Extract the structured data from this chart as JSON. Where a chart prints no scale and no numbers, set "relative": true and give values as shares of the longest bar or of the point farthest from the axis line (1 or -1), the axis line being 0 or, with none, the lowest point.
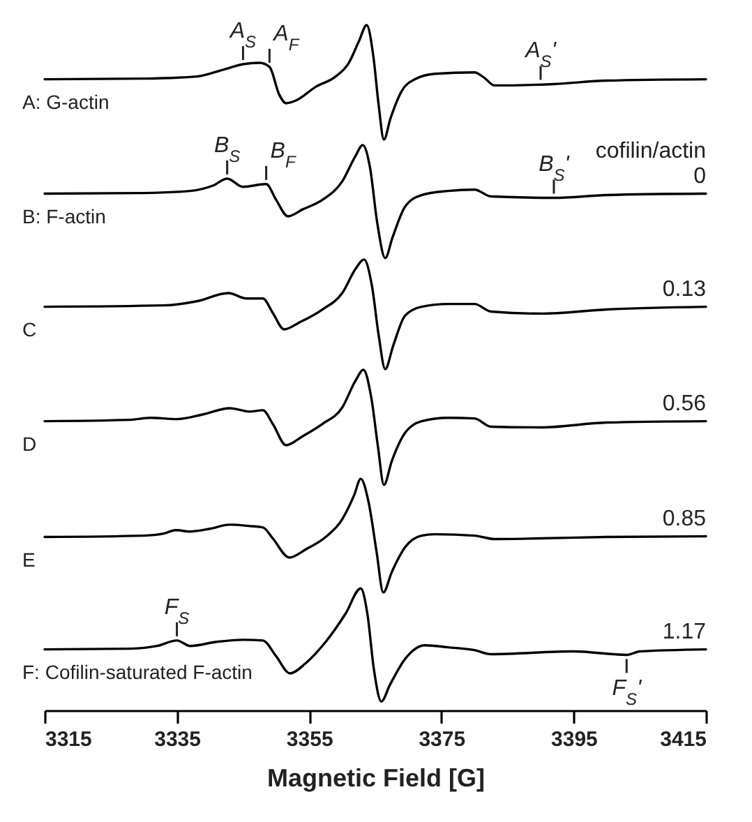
{
  "chart_data": {
    "type": "line",
    "relative": true,
    "xlabel": "Magnetic Field [G]",
    "xlim": [
      3315,
      3415
    ],
    "xticks": [
      3315,
      3335,
      3355,
      3375,
      3395,
      3415
    ],
    "grid": false,
    "legend": false,
    "legend_title": "cofilin/actin",
    "line_style": "solid",
    "marker": "none",
    "series": [
      {
        "name": "A: G-actin",
        "color": "#000000",
        "x": [
          3315,
          3330,
          3338,
          3342,
          3345,
          3347.5,
          3349,
          3350.5,
          3351.5,
          3353,
          3356,
          3359,
          3361,
          3362.5,
          3363.7,
          3364.7,
          3365.5,
          3366.3,
          3367.3,
          3369,
          3371,
          3374,
          3380,
          3381.5,
          3383,
          3392,
          3400,
          3415
        ],
        "values": [
          0.921,
          0.922,
          0.925,
          0.935,
          0.943,
          0.945,
          0.939,
          0.898,
          0.886,
          0.89,
          0.91,
          0.925,
          0.945,
          0.976,
          1.0,
          0.955,
          0.884,
          0.833,
          0.864,
          0.904,
          0.921,
          0.929,
          0.931,
          0.923,
          0.912,
          0.914,
          0.919,
          0.921
        ]
      },
      {
        "name": "B: F-actin",
        "color": "#000000",
        "x": [
          3315,
          3330,
          3337,
          3340.5,
          3342.6,
          3345,
          3348.5,
          3350,
          3351.8,
          3354,
          3357,
          3360,
          3362,
          3363.1,
          3364.2,
          3365.3,
          3366.5,
          3367.6,
          3369.5,
          3372,
          3376,
          3380,
          3382.5,
          3392,
          3400,
          3415
        ],
        "values": [
          0.754,
          0.755,
          0.758,
          0.766,
          0.776,
          0.764,
          0.768,
          0.745,
          0.721,
          0.731,
          0.745,
          0.772,
          0.809,
          0.825,
          0.792,
          0.711,
          0.66,
          0.69,
          0.735,
          0.752,
          0.758,
          0.76,
          0.75,
          0.748,
          0.752,
          0.754
        ]
      },
      {
        "name": "C",
        "color": "#000000",
        "x": [
          3315,
          3333,
          3338,
          3342.8,
          3345.5,
          3348,
          3349.5,
          3351.2,
          3353.5,
          3357,
          3360,
          3362,
          3363.3,
          3364.5,
          3365.5,
          3366.5,
          3367.7,
          3369.5,
          3372,
          3376,
          3380,
          3382.5,
          3390,
          3400,
          3415
        ],
        "values": [
          0.589,
          0.591,
          0.597,
          0.609,
          0.601,
          0.601,
          0.58,
          0.556,
          0.566,
          0.585,
          0.609,
          0.644,
          0.658,
          0.619,
          0.548,
          0.498,
          0.532,
          0.576,
          0.589,
          0.593,
          0.593,
          0.582,
          0.579,
          0.585,
          0.589
        ]
      },
      {
        "name": "D",
        "color": "#000000",
        "x": [
          3315,
          3328,
          3331,
          3335,
          3339,
          3343,
          3346,
          3348,
          3349.5,
          3351.5,
          3354,
          3357,
          3360,
          3362,
          3363.2,
          3364.4,
          3365.4,
          3366.3,
          3367.5,
          3369.5,
          3372,
          3376,
          3380,
          3382.5,
          3390,
          3400,
          3415
        ],
        "values": [
          0.422,
          0.424,
          0.427,
          0.425,
          0.432,
          0.441,
          0.436,
          0.438,
          0.418,
          0.387,
          0.4,
          0.418,
          0.442,
          0.481,
          0.497,
          0.456,
          0.385,
          0.329,
          0.364,
          0.405,
          0.422,
          0.427,
          0.426,
          0.414,
          0.413,
          0.42,
          0.422
        ]
      },
      {
        "name": "E",
        "color": "#000000",
        "x": [
          3315,
          3330,
          3333,
          3334.8,
          3337,
          3340,
          3343,
          3346,
          3348,
          3349.5,
          3352,
          3354.5,
          3357.5,
          3360,
          3361.8,
          3362.8,
          3364,
          3365.2,
          3366.2,
          3367.5,
          3369.5,
          3372,
          3374,
          3380,
          3383,
          3390,
          3400,
          3415
        ],
        "values": [
          0.253,
          0.255,
          0.258,
          0.263,
          0.261,
          0.265,
          0.271,
          0.269,
          0.267,
          0.251,
          0.223,
          0.235,
          0.253,
          0.279,
          0.314,
          0.338,
          0.303,
          0.231,
          0.172,
          0.202,
          0.238,
          0.255,
          0.257,
          0.255,
          0.25,
          0.251,
          0.253,
          0.254
        ]
      },
      {
        "name": "F: Cofilin-saturated F-actin",
        "color": "#000000",
        "x": [
          3315,
          3328,
          3332,
          3335,
          3337,
          3341,
          3345,
          3348,
          3350,
          3352.1,
          3354.5,
          3357.5,
          3360.5,
          3362.8,
          3363.8,
          3364.8,
          3365.9,
          3367.2,
          3369.5,
          3372.5,
          3376,
          3380,
          3382.5,
          3395,
          3403,
          3405,
          3415
        ],
        "values": [
          0.089,
          0.09,
          0.094,
          0.102,
          0.094,
          0.1,
          0.103,
          0.102,
          0.079,
          0.054,
          0.069,
          0.1,
          0.141,
          0.178,
          0.141,
          0.059,
          0.013,
          0.037,
          0.075,
          0.095,
          0.092,
          0.088,
          0.082,
          0.086,
          0.081,
          0.086,
          0.089
        ]
      }
    ],
    "annotations": [
      {
        "text": "A$_{S}$",
        "x": 3345,
        "y": 0.943
      },
      {
        "text": "A$_{F}$",
        "x": 3349,
        "y": 0.939
      },
      {
        "text": "A$_{S}$'",
        "x": 3390,
        "y": 0.914
      },
      {
        "text": "B$_{S}$",
        "x": 3342.6,
        "y": 0.776
      },
      {
        "text": "B$_{F}$",
        "x": 3348.5,
        "y": 0.768
      },
      {
        "text": "B$_{S}$'",
        "x": 3392,
        "y": 0.748
      },
      {
        "text": "F$_{S}$",
        "x": 3335,
        "y": 0.102
      },
      {
        "text": "F$_{S}$'",
        "x": 3403,
        "y": 0.081
      },
      {
        "text": "0",
        "x": 3415,
        "y": 0.754
      },
      {
        "text": "0.13",
        "x": 3415,
        "y": 0.589
      },
      {
        "text": "0.56",
        "x": 3415,
        "y": 0.422
      },
      {
        "text": "0.85",
        "x": 3415,
        "y": 0.254
      },
      {
        "text": "1.17",
        "x": 3415,
        "y": 0.089
      }
    ]
  }
}
